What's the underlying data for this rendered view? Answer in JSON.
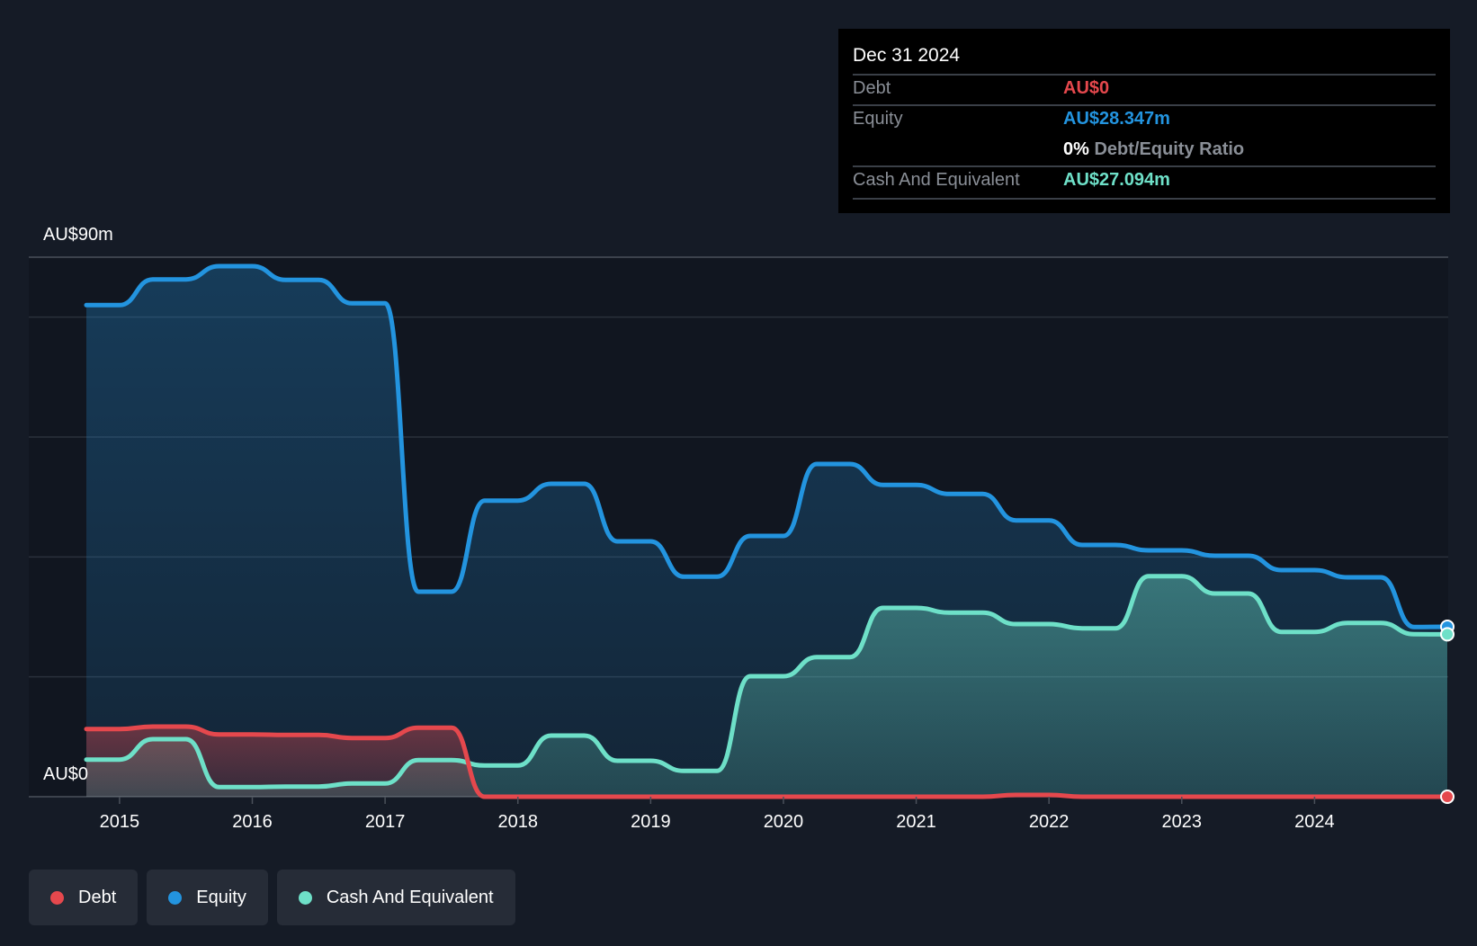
{
  "colors": {
    "debt": "#e5484d",
    "equity": "#2394df",
    "cash": "#6ee0c8",
    "background": "#151b26",
    "plot_background": "#111620"
  },
  "tooltip": {
    "date": "Dec 31 2024",
    "debt_label": "Debt",
    "debt_value": "AU$0",
    "equity_label": "Equity",
    "equity_value": "AU$28.347m",
    "ratio_value": "0%",
    "ratio_label": "Debt/Equity Ratio",
    "cash_label": "Cash And Equivalent",
    "cash_value": "AU$27.094m"
  },
  "y_axis": {
    "top_label": "AU$90m",
    "bottom_label": "AU$0"
  },
  "legend": [
    {
      "label": "Debt",
      "color": "#e5484d"
    },
    {
      "label": "Equity",
      "color": "#2394df"
    },
    {
      "label": "Cash And Equivalent",
      "color": "#6ee0c8"
    }
  ],
  "chart_data": {
    "type": "area",
    "title": "",
    "xlabel": "",
    "ylabel": "",
    "ylim": [
      0,
      90
    ],
    "x_ticks": [
      "2015",
      "2016",
      "2017",
      "2018",
      "2019",
      "2020",
      "2021",
      "2022",
      "2023",
      "2024"
    ],
    "grid": true,
    "legend_placement": "bottom-left",
    "x": [
      2014.75,
      2015.0,
      2015.25,
      2015.5,
      2015.75,
      2016.0,
      2016.25,
      2016.5,
      2016.75,
      2017.0,
      2017.25,
      2017.5,
      2017.75,
      2018.0,
      2018.25,
      2018.5,
      2018.75,
      2019.0,
      2019.25,
      2019.5,
      2019.75,
      2020.0,
      2020.25,
      2020.5,
      2020.75,
      2021.0,
      2021.25,
      2021.5,
      2021.75,
      2022.0,
      2022.25,
      2022.5,
      2022.75,
      2023.0,
      2023.25,
      2023.5,
      2023.75,
      2024.0,
      2024.25,
      2024.5,
      2024.75,
      2025.0
    ],
    "series": [
      {
        "name": "Debt",
        "values": [
          11.3,
          11.3,
          11.7,
          11.7,
          10.4,
          10.4,
          10.3,
          10.3,
          9.8,
          9.8,
          11.5,
          11.5,
          0.0,
          0.0,
          0.0,
          0.0,
          0.0,
          0.0,
          0.0,
          0.0,
          0.0,
          0.0,
          0.0,
          0.0,
          0.0,
          0.0,
          0.0,
          0.0,
          0.3,
          0.3,
          0.0,
          0.0,
          0.0,
          0.0,
          0.0,
          0.0,
          0.0,
          0.0,
          0.0,
          0.0,
          0.0,
          0.0
        ]
      },
      {
        "name": "Equity",
        "values": [
          82.0,
          82.0,
          86.3,
          86.3,
          88.5,
          88.5,
          86.2,
          86.2,
          82.3,
          82.3,
          34.2,
          34.2,
          49.4,
          49.4,
          52.2,
          52.2,
          42.6,
          42.6,
          36.7,
          36.7,
          43.5,
          43.5,
          55.5,
          55.5,
          52.0,
          52.0,
          50.5,
          50.5,
          46.1,
          46.1,
          42.0,
          42.0,
          41.1,
          41.1,
          40.2,
          40.2,
          37.8,
          37.8,
          36.6,
          36.6,
          28.3,
          28.347
        ]
      },
      {
        "name": "Cash And Equivalent",
        "values": [
          6.2,
          6.2,
          9.6,
          9.6,
          1.6,
          1.6,
          1.7,
          1.7,
          2.2,
          2.2,
          6.1,
          6.1,
          5.2,
          5.2,
          10.2,
          10.2,
          6.0,
          6.0,
          4.3,
          4.3,
          20.1,
          20.1,
          23.3,
          23.3,
          31.5,
          31.5,
          30.7,
          30.7,
          28.8,
          28.8,
          28.1,
          28.1,
          36.8,
          36.8,
          33.9,
          33.9,
          27.5,
          27.5,
          29.0,
          29.0,
          27.1,
          27.094
        ]
      }
    ]
  }
}
